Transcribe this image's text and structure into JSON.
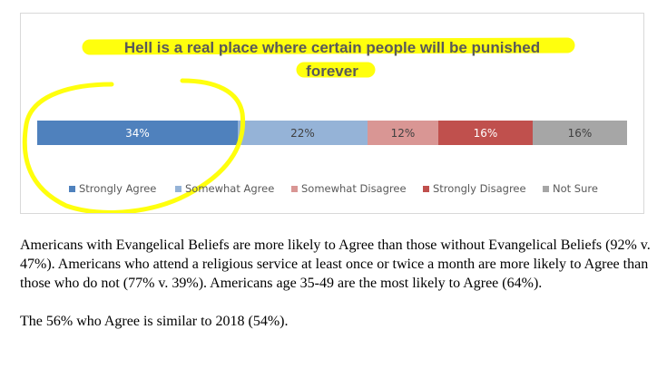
{
  "chart_data": {
    "type": "bar",
    "orientation": "horizontal",
    "stacked": true,
    "title": "Hell is a real place where certain people will be punished forever",
    "title_lines": [
      "Hell is a real place where certain people will be punished",
      "forever"
    ],
    "series": [
      {
        "name": "Strongly Agree",
        "value": 34,
        "label": "34%",
        "color": "#4f81bd",
        "label_color": "#ffffff"
      },
      {
        "name": "Somewhat Agree",
        "value": 22,
        "label": "22%",
        "color": "#95b3d7",
        "label_color": "#404040"
      },
      {
        "name": "Somewhat Disagree",
        "value": 12,
        "label": "12%",
        "color": "#d99694",
        "label_color": "#404040"
      },
      {
        "name": "Strongly Disagree",
        "value": 16,
        "label": "16%",
        "color": "#c0504d",
        "label_color": "#ffffff"
      },
      {
        "name": "Not Sure",
        "value": 16,
        "label": "16%",
        "color": "#a6a6a6",
        "label_color": "#404040"
      }
    ],
    "xlim": [
      0,
      100
    ],
    "legend_position": "bottom",
    "grid": false,
    "annotations": {
      "highlight_color": "#ffff00",
      "title_highlighted": true,
      "circled_series": "Strongly Agree"
    }
  },
  "caption": {
    "paragraph_1": "Americans with Evangelical Beliefs are more likely to Agree than those without Evangelical Beliefs (92% v. 47%). Americans who attend a religious service at least once or twice a month are more likely to Agree than those who do not (77% v. 39%). Americans age 35-49 are the most likely to Agree (64%).",
    "paragraph_2": "The 56% who Agree is similar to 2018 (54%)."
  }
}
